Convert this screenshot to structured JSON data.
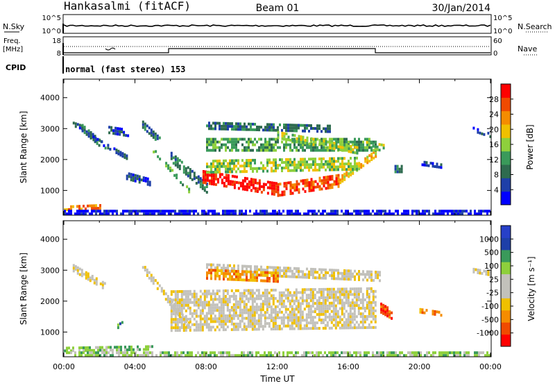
{
  "header": {
    "station": "Hankasalmi (fitACF)",
    "beam": "Beam 01",
    "date": "30/Jan/2014"
  },
  "strip_panels": {
    "nsky": {
      "label": "N.Sky",
      "left_ticks": [
        "10^5",
        "10^0"
      ],
      "right_label": "N.Search",
      "right_ticks": [
        "10^5",
        "10^0"
      ]
    },
    "freq": {
      "label_line1": "Freq.",
      "label_line2": "[MHz]",
      "left_ticks": [
        "18",
        "8"
      ],
      "right_label": "Nave",
      "right_ticks": [
        "60",
        "0"
      ]
    },
    "cpid": {
      "label": "CPID",
      "text": "normal (fast stereo) 153"
    }
  },
  "colors": {
    "scale_power": [
      "#0000ff",
      "#1e3fa8",
      "#2e6b4f",
      "#3a9a5a",
      "#8ed03c",
      "#f0c000",
      "#f58c00",
      "#f04a00",
      "#ff0000"
    ],
    "scale_velocity": [
      "#ff0000",
      "#f04a00",
      "#f58c00",
      "#f0c000",
      "#c2c1bb",
      "#c2c1bb",
      "#8ed03c",
      "#3a9a5a",
      "#1e3fa8",
      "#2740c8"
    ],
    "ground_scatter": "#c2c1bb"
  },
  "chart_data": [
    {
      "type": "heatmap",
      "title": "",
      "xlabel": "Time UT",
      "ylabel": "Slant Range [km]",
      "x_ticks": [
        "00:00",
        "04:00",
        "08:00",
        "12:00",
        "16:00",
        "20:00",
        "00:00"
      ],
      "xlim_hours": [
        0,
        24
      ],
      "y_ticks": [
        "1000",
        "2000",
        "3000",
        "4000"
      ],
      "ylim": [
        200,
        4600
      ],
      "colorbar": {
        "label": "Power [dB]",
        "ticks": [
          "4",
          "8",
          "12",
          "16",
          "20",
          "24",
          "28"
        ],
        "range": [
          0,
          32
        ]
      },
      "regions": [
        {
          "name": "",
          "t0": 0.5,
          "t1": 1.0,
          "r_mid": [
            3150,
            3050
          ],
          "thick": 150,
          "level": 1
        },
        {
          "name": "",
          "t0": 1.0,
          "t1": 2.3,
          "r_mid": [
            3050,
            2400
          ],
          "thick": 200,
          "level": 2
        },
        {
          "name": "",
          "t0": 1.5,
          "t1": 3.5,
          "r_mid": [
            2750,
            2100
          ],
          "thick": 120,
          "level": 1
        },
        {
          "name": "",
          "t0": 2.5,
          "t1": 3.6,
          "r_mid": [
            3000,
            2900
          ],
          "thick": 180,
          "level": 1
        },
        {
          "name": "",
          "t0": 4.4,
          "t1": 5.4,
          "r_mid": [
            3150,
            2600
          ],
          "thick": 220,
          "level": 2
        },
        {
          "name": "",
          "t0": 5.0,
          "t1": 7.0,
          "r_mid": [
            2300,
            1000
          ],
          "thick": 160,
          "level": 3
        },
        {
          "name": "",
          "t0": 6.0,
          "t1": 8.0,
          "r_mid": [
            2100,
            1100
          ],
          "thick": 300,
          "level": 2
        },
        {
          "name": "",
          "t0": 7.8,
          "t1": 12.0,
          "r_mid": [
            1450,
            1050
          ],
          "thick": 420,
          "level": 8
        },
        {
          "name": "",
          "t0": 12.0,
          "t1": 15.5,
          "r_mid": [
            1050,
            1350
          ],
          "thick": 380,
          "level": 7
        },
        {
          "name": "",
          "t0": 15.5,
          "t1": 17.5,
          "r_mid": [
            1350,
            2200
          ],
          "thick": 250,
          "level": 5
        },
        {
          "name": "",
          "t0": 8.0,
          "t1": 16.5,
          "r_mid": [
            1800,
            1900
          ],
          "thick": 380,
          "level": 4
        },
        {
          "name": "",
          "t0": 8.0,
          "t1": 17.5,
          "r_mid": [
            2500,
            2500
          ],
          "thick": 400,
          "level": 3
        },
        {
          "name": "",
          "t0": 8.0,
          "t1": 15.0,
          "r_mid": [
            3100,
            3000
          ],
          "thick": 250,
          "level": 2
        },
        {
          "name": "",
          "t0": 12.0,
          "t1": 16.5,
          "r_mid": [
            2800,
            2300
          ],
          "thick": 250,
          "level": 4
        },
        {
          "name": "",
          "t0": 17.0,
          "t1": 18.0,
          "r_mid": [
            2500,
            2400
          ],
          "thick": 200,
          "level": 4
        },
        {
          "name": "",
          "t0": 3.5,
          "t1": 4.8,
          "r_mid": [
            1500,
            1300
          ],
          "thick": 200,
          "level": 1
        },
        {
          "name": "",
          "t0": 18.6,
          "t1": 19.0,
          "r_mid": [
            1700,
            1700
          ],
          "thick": 250,
          "level": 2
        },
        {
          "name": "",
          "t0": 20.0,
          "t1": 21.2,
          "r_mid": [
            1900,
            1800
          ],
          "thick": 150,
          "level": 1
        },
        {
          "name": "",
          "t0": 23.0,
          "t1": 24.0,
          "r_mid": [
            3000,
            2800
          ],
          "thick": 120,
          "level": 1
        },
        {
          "name": "",
          "t0": 0.0,
          "t1": 2.0,
          "r_mid": [
            450,
            500
          ],
          "thick": 120,
          "level": 6
        },
        {
          "name": "",
          "t0": 0.0,
          "t1": 24.0,
          "r_mid": [
            300,
            300
          ],
          "thick": 150,
          "level": 0
        }
      ]
    },
    {
      "type": "heatmap",
      "title": "",
      "xlabel": "Time UT",
      "ylabel": "Slant Range [km]",
      "x_ticks": [
        "00:00",
        "04:00",
        "08:00",
        "12:00",
        "16:00",
        "20:00",
        "00:00"
      ],
      "xlim_hours": [
        0,
        24
      ],
      "y_ticks": [
        "1000",
        "2000",
        "3000",
        "4000"
      ],
      "ylim": [
        200,
        4600
      ],
      "colorbar": {
        "label": "Velocity [m s⁻¹]",
        "ticks": [
          "1000",
          "500",
          "100",
          "25",
          "-25",
          "-100",
          "-500",
          "-1000"
        ]
      },
      "regions": [
        {
          "name": "",
          "t0": 0.5,
          "t1": 2.3,
          "r_mid": [
            3100,
            2500
          ],
          "thick": 200,
          "level": 4
        },
        {
          "name": "",
          "t0": 4.4,
          "t1": 7.0,
          "r_mid": [
            3100,
            1200
          ],
          "thick": 250,
          "level": 4
        },
        {
          "name": "",
          "t0": 6.0,
          "t1": 17.5,
          "r_mid": [
            1700,
            1800
          ],
          "thick": 1300,
          "level": 4
        },
        {
          "name": "",
          "t0": 8.0,
          "t1": 17.8,
          "r_mid": [
            3050,
            2800
          ],
          "thick": 350,
          "level": 4
        },
        {
          "name": "",
          "t0": 8.0,
          "t1": 12.0,
          "r_mid": [
            2900,
            2800
          ],
          "thick": 300,
          "level": 2
        },
        {
          "name": "",
          "t0": 17.8,
          "t1": 18.4,
          "r_mid": [
            1800,
            1600
          ],
          "thick": 300,
          "level": 1
        },
        {
          "name": "",
          "t0": 20.0,
          "t1": 21.2,
          "r_mid": [
            1700,
            1600
          ],
          "thick": 150,
          "level": 2
        },
        {
          "name": "",
          "t0": 3.0,
          "t1": 3.3,
          "r_mid": [
            1200,
            1300
          ],
          "thick": 150,
          "level": 7
        },
        {
          "name": "",
          "t0": 0.0,
          "t1": 5.0,
          "r_mid": [
            450,
            500
          ],
          "thick": 150,
          "level": 6
        },
        {
          "name": "",
          "t0": 23.0,
          "t1": 24.0,
          "r_mid": [
            3000,
            2900
          ],
          "thick": 150,
          "level": 4
        },
        {
          "name": "",
          "t0": 0.0,
          "t1": 24.0,
          "r_mid": [
            300,
            300
          ],
          "thick": 150,
          "level": 6
        }
      ]
    }
  ]
}
